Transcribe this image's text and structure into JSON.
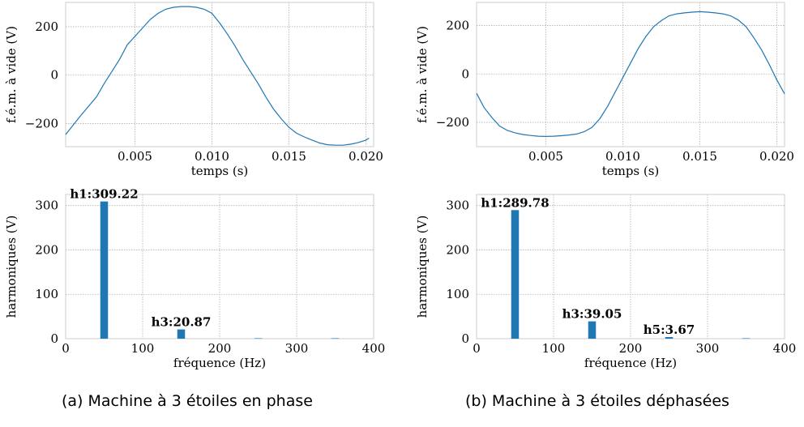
{
  "colors": {
    "series": "#1f77b4",
    "grid": "#b0b0b0",
    "axis": "#cccccc"
  },
  "captions": [
    "(a) Machine à 3 étoiles en phase",
    "(b) Machine à 3 étoiles déphasées"
  ],
  "chart_data": [
    {
      "type": "line",
      "xlabel": "temps (s)",
      "ylabel": "f.é.m. à vide (V)",
      "xlim": [
        0.0005,
        0.0205
      ],
      "ylim": [
        -295,
        300
      ],
      "xticks": [
        0.005,
        0.01,
        0.015,
        0.02
      ],
      "xtick_labels": [
        "0.005",
        "0.010",
        "0.015",
        "0.020"
      ],
      "yticks": [
        -200,
        0,
        200
      ],
      "ytick_labels": [
        "−200",
        "0",
        "200"
      ],
      "grid": true,
      "x": [
        0.0005,
        0.0015,
        0.0025,
        0.003,
        0.0035,
        0.004,
        0.0045,
        0.005,
        0.0055,
        0.006,
        0.0065,
        0.007,
        0.0075,
        0.008,
        0.0085,
        0.009,
        0.0095,
        0.01,
        0.0105,
        0.011,
        0.0115,
        0.012,
        0.0125,
        0.013,
        0.0135,
        0.014,
        0.0145,
        0.015,
        0.0155,
        0.016,
        0.0165,
        0.017,
        0.0175,
        0.018,
        0.0185,
        0.019,
        0.0195,
        0.02,
        0.0202
      ],
      "y": [
        -245,
        -165,
        -90,
        -35,
        15,
        65,
        125,
        160,
        195,
        230,
        255,
        272,
        280,
        283,
        283,
        280,
        272,
        255,
        215,
        170,
        120,
        65,
        15,
        -35,
        -90,
        -140,
        -180,
        -215,
        -240,
        -255,
        -268,
        -280,
        -287,
        -289,
        -289,
        -285,
        -278,
        -268,
        -260
      ]
    },
    {
      "type": "line",
      "xlabel": "temps (s)",
      "ylabel": "f.é.m. à vide (V)",
      "xlim": [
        0.0005,
        0.0205
      ],
      "ylim": [
        -300,
        295
      ],
      "xticks": [
        0.005,
        0.01,
        0.015,
        0.02
      ],
      "xtick_labels": [
        "0.005",
        "0.010",
        "0.015",
        "0.020"
      ],
      "yticks": [
        -200,
        0,
        200
      ],
      "ytick_labels": [
        "−200",
        "0",
        "200"
      ],
      "grid": true,
      "x": [
        0.0005,
        0.001,
        0.0015,
        0.002,
        0.0025,
        0.003,
        0.0035,
        0.004,
        0.0045,
        0.005,
        0.0055,
        0.006,
        0.0065,
        0.007,
        0.0075,
        0.008,
        0.0085,
        0.009,
        0.0095,
        0.01,
        0.0105,
        0.011,
        0.0115,
        0.012,
        0.0125,
        0.013,
        0.0135,
        0.014,
        0.0145,
        0.015,
        0.0155,
        0.016,
        0.0165,
        0.017,
        0.0175,
        0.018,
        0.0185,
        0.019,
        0.0195,
        0.02,
        0.0205
      ],
      "y": [
        -80,
        -140,
        -180,
        -215,
        -233,
        -243,
        -250,
        -254,
        -257,
        -258,
        -257,
        -255,
        -252,
        -248,
        -238,
        -220,
        -185,
        -135,
        -75,
        -15,
        45,
        105,
        155,
        195,
        220,
        240,
        248,
        252,
        255,
        257,
        255,
        252,
        248,
        240,
        222,
        195,
        150,
        100,
        40,
        -25,
        -82
      ]
    },
    {
      "type": "bar",
      "xlabel": "fréquence (Hz)",
      "ylabel": "harmoniques (V)",
      "xlim": [
        0,
        400
      ],
      "ylim": [
        0,
        325
      ],
      "xticks": [
        0,
        100,
        200,
        300,
        400
      ],
      "xtick_labels": [
        "0",
        "100",
        "200",
        "300",
        "400"
      ],
      "yticks": [
        0,
        100,
        200,
        300
      ],
      "ytick_labels": [
        "0",
        "100",
        "200",
        "300"
      ],
      "grid": true,
      "x": [
        50,
        150,
        250,
        350
      ],
      "values": [
        309.22,
        20.87,
        1.0,
        1.0
      ],
      "annotations": [
        {
          "x": 50,
          "y": 309.22,
          "text": "h1:309.22"
        },
        {
          "x": 150,
          "y": 20.87,
          "text": "h3:20.87"
        }
      ]
    },
    {
      "type": "bar",
      "xlabel": "fréquence (Hz)",
      "ylabel": "harmoniques (V)",
      "xlim": [
        0,
        400
      ],
      "ylim": [
        0,
        325
      ],
      "xticks": [
        0,
        100,
        200,
        300,
        400
      ],
      "xtick_labels": [
        "0",
        "100",
        "200",
        "300",
        "400"
      ],
      "yticks": [
        0,
        100,
        200,
        300
      ],
      "ytick_labels": [
        "0",
        "100",
        "200",
        "300"
      ],
      "grid": true,
      "x": [
        50,
        150,
        250,
        350
      ],
      "values": [
        289.78,
        39.05,
        3.67,
        1.0
      ],
      "annotations": [
        {
          "x": 50,
          "y": 289.78,
          "text": "h1:289.78"
        },
        {
          "x": 150,
          "y": 39.05,
          "text": "h3:39.05"
        },
        {
          "x": 250,
          "y": 3.67,
          "text": "h5:3.67"
        }
      ]
    }
  ]
}
